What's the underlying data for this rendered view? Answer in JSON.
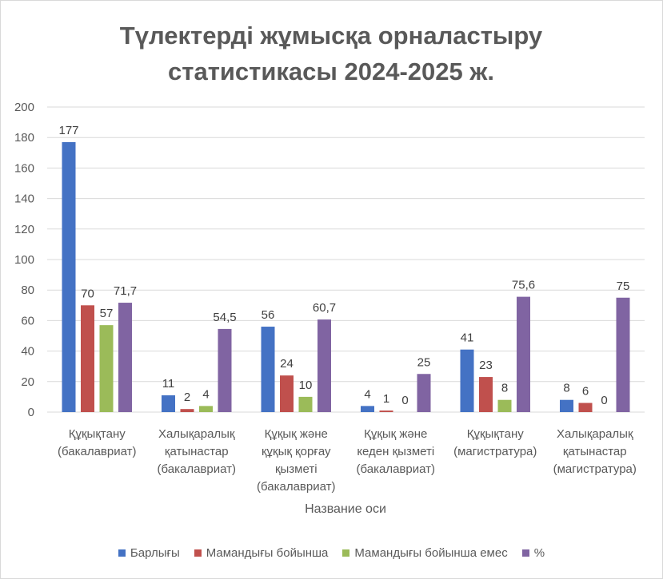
{
  "chart_data": {
    "type": "bar",
    "title": "Түлектерді жұмысқа орналастыру статистикасы 2024-2025 ж.",
    "title_lines": [
      "Түлектерді жұмысқа орналастыру",
      "статистикасы 2024-2025 ж."
    ],
    "xlabel": "Название оси",
    "ylabel": "",
    "ylim": [
      0,
      200
    ],
    "yticks": [
      0,
      20,
      40,
      60,
      80,
      100,
      120,
      140,
      160,
      180,
      200
    ],
    "grid": true,
    "legend_position": "bottom",
    "categories": [
      [
        "Құқықтану",
        "(бакалавриат)"
      ],
      [
        "Халықаралық",
        "қатынастар",
        "(бакалавриат)"
      ],
      [
        "Құқық және",
        "құқық қорғау",
        "қызметі",
        "(бакалавриат)"
      ],
      [
        "Құқық және",
        "кеден қызметі",
        "(бакалавриат)"
      ],
      [
        "Құқықтану",
        "(магистратура)"
      ],
      [
        "Халықаралық",
        "қатынастар",
        "(магистратура)"
      ]
    ],
    "series": [
      {
        "name": "Барлығы",
        "color": "#4472C4",
        "values": [
          177,
          11,
          56,
          4,
          41,
          8
        ],
        "labels": [
          "177",
          "11",
          "56",
          "4",
          "41",
          "8"
        ]
      },
      {
        "name": "Мамандығы бойынша",
        "color": "#C0504D",
        "values": [
          70,
          2,
          24,
          1,
          23,
          6
        ],
        "labels": [
          "70",
          "2",
          "24",
          "1",
          "23",
          "6"
        ]
      },
      {
        "name": "Мамандығы бойынша емес",
        "color": "#9BBB59",
        "values": [
          57,
          4,
          10,
          0,
          8,
          0
        ],
        "labels": [
          "57",
          "4",
          "10",
          "0",
          "8",
          "0"
        ]
      },
      {
        "name": "%",
        "color": "#8064A2",
        "values": [
          71.7,
          54.5,
          60.7,
          25,
          75.6,
          75
        ],
        "labels": [
          "71,7",
          "54,5",
          "60,7",
          "25",
          "75,6",
          "75"
        ]
      }
    ]
  }
}
